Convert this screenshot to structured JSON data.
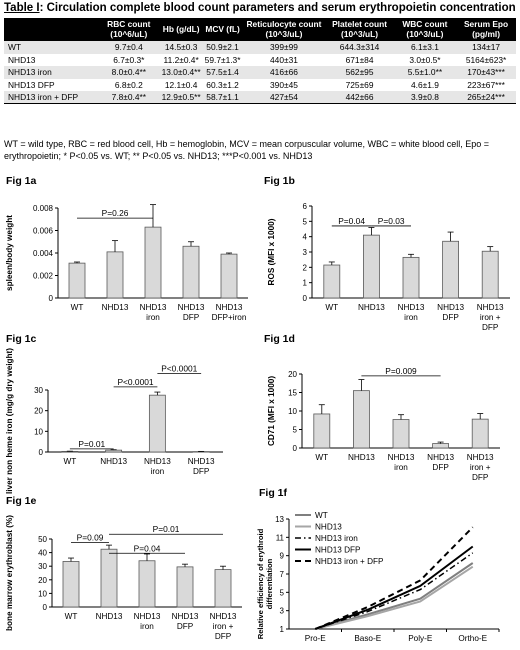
{
  "table": {
    "label": "Table I",
    "caption": ": Circulation complete blood count parameters and serum erythropoietin concentration",
    "headers": [
      "",
      "RBC count (10^6/uL)",
      "Hb (g/dL)",
      "MCV (fL)",
      "Reticulocyte count (10^3/uL)",
      "Platelet count (10^3/uL)",
      "WBC count (10^3/uL)",
      "Serum Epo (pg/ml)"
    ],
    "rows": [
      [
        "WT",
        "9.7±0.4",
        "14.5±0.3",
        "50.9±2.1",
        "399±99",
        "644.3±314",
        "6.1±3.1",
        "134±17"
      ],
      [
        "NHD13",
        "6.7±0.3*",
        "11.2±0.4*",
        "59.7±1.3*",
        "440±31",
        "671±84",
        "3.0±0.5*",
        "5164±623*"
      ],
      [
        "NHD13 iron",
        "8.0±0.4**",
        "13.0±0.4**",
        "57.5±1.4",
        "416±66",
        "562±95",
        "5.5±1.0**",
        "170±43***"
      ],
      [
        "NHD13 DFP",
        "6.8±0.2",
        "12.1±0.4",
        "60.3±1.2",
        "390±45",
        "725±69",
        "4.6±1.9",
        "223±67***"
      ],
      [
        "NHD13 iron + DFP",
        "7.8±0.4**",
        "12.9±0.5**",
        "58.7±1.1",
        "427±54",
        "442±66",
        "3.9±0.8",
        "265±24***"
      ]
    ]
  },
  "footnote": "WT = wild type, RBC = red blood cell, Hb = hemoglobin, MCV = mean corpuscular volume, WBC = white blood cell, Epo = erythropoietin; * P<0.05 vs. WT; ** P<0.05 vs. NHD13; ***P<0.001 vs. NHD13",
  "chart_data": [
    {
      "id": "fig1a",
      "type": "bar",
      "title": "Fig 1a",
      "ylabel": "spleen/body weight",
      "ylim": [
        0,
        0.008
      ],
      "yticks": [
        0,
        0.002,
        0.004,
        0.006,
        0.008
      ],
      "ytick_labels": [
        "0",
        "0.002",
        "0.004",
        "0.006",
        "0.008"
      ],
      "categories": [
        "WT",
        "NHD13",
        "NHD13 iron",
        "NHD13 DFP",
        "NHD13 DFP+iron"
      ],
      "values": [
        0.0031,
        0.0041,
        0.0063,
        0.0046,
        0.0039
      ],
      "errors": [
        0.0001,
        0.001,
        0.002,
        0.0004,
        0.0001
      ],
      "annotations": [
        {
          "text": "P=0.26",
          "from": 0,
          "to": 2,
          "y": 0.0071
        }
      ]
    },
    {
      "id": "fig1b",
      "type": "bar",
      "title": "Fig 1b",
      "ylabel": "ROS (MFI x 1000)",
      "ylim": [
        0,
        6
      ],
      "yticks": [
        0,
        1,
        2,
        3,
        4,
        5,
        6
      ],
      "ytick_labels": [
        "0",
        "1",
        "2",
        "3",
        "4",
        "5",
        "6"
      ],
      "categories": [
        "WT",
        "NHD13",
        "NHD13 iron",
        "NHD13 DFP",
        "NHD13 iron + DFP"
      ],
      "values": [
        2.15,
        4.1,
        2.65,
        3.7,
        3.05
      ],
      "errors": [
        0.2,
        0.5,
        0.2,
        0.6,
        0.3
      ],
      "annotations": [
        {
          "text": "P=0.04",
          "from": 0,
          "to": 1,
          "y": 4.7
        },
        {
          "text": "P=0.03",
          "from": 1,
          "to": 2,
          "y": 4.7
        }
      ]
    },
    {
      "id": "fig1c",
      "type": "bar",
      "title": "Fig 1c",
      "ylabel": "liver non heme iron (mg/g dry weight)",
      "ylim": [
        0,
        30
      ],
      "yticks": [
        0,
        10,
        20,
        30
      ],
      "ytick_labels": [
        "0",
        "10",
        "20",
        "30"
      ],
      "categories": [
        "WT",
        "NHD13",
        "NHD13 iron",
        "NHD13 DFP"
      ],
      "values": [
        0.3,
        0.9,
        27.5,
        0.2
      ],
      "errors": [
        0.1,
        0.2,
        1.5,
        0.1
      ],
      "annotations": [
        {
          "text": "P=0.01",
          "from": 0,
          "to": 1,
          "y": 1.5
        },
        {
          "text": "P<0.0001",
          "from": 1,
          "to": 2,
          "y": 31.5
        },
        {
          "text": "P<0.0001",
          "from": 2,
          "to": 3,
          "y": 38
        }
      ]
    },
    {
      "id": "fig1d",
      "type": "bar",
      "title": "Fig 1d",
      "ylabel": "CD71 (MFI x 1000)",
      "ylim": [
        0,
        20
      ],
      "yticks": [
        0,
        5,
        10,
        15,
        20
      ],
      "ytick_labels": [
        "0",
        "5",
        "10",
        "15",
        "20"
      ],
      "categories": [
        "WT",
        "NHD13",
        "NHD13 iron",
        "NHD13 DFP",
        "NHD13 iron + DFP"
      ],
      "values": [
        9.2,
        15.5,
        7.7,
        1.2,
        7.8
      ],
      "errors": [
        2.5,
        3.0,
        1.3,
        0.4,
        1.5
      ],
      "annotations": [
        {
          "text": "P=0.009",
          "from": 1,
          "to": 3,
          "y": 19.5
        }
      ]
    },
    {
      "id": "fig1e",
      "type": "bar",
      "title": "Fig 1e",
      "ylabel": "bone marrow erythroblast (%)",
      "ylim": [
        0,
        50
      ],
      "yticks": [
        0,
        10,
        20,
        30,
        40,
        50
      ],
      "ytick_labels": [
        "0",
        "10",
        "20",
        "30",
        "40",
        "50"
      ],
      "categories": [
        "WT",
        "NHD13",
        "NHD13 iron",
        "NHD13 DFP",
        "NHD13 iron + DFP"
      ],
      "values": [
        33.5,
        42.5,
        34,
        29.5,
        27.5
      ],
      "errors": [
        2.5,
        3.0,
        5.0,
        2.0,
        2.5
      ],
      "annotations": [
        {
          "text": "P=0.09",
          "from": 0,
          "to": 1,
          "y": 47.5
        },
        {
          "text": "P=0.04",
          "from": 1,
          "to": 3,
          "y": 39.5
        },
        {
          "text": "P=0.01",
          "from": 1,
          "to": 4,
          "y": 53.5
        }
      ]
    },
    {
      "id": "fig1f",
      "type": "line",
      "title": "Fig 1f",
      "ylabel": "Relative efficiency of erythroid differentiation",
      "ylim": [
        1,
        13
      ],
      "yticks": [
        1,
        3,
        5,
        7,
        9,
        11,
        13
      ],
      "ytick_labels": [
        "1",
        "3",
        "5",
        "7",
        "9",
        "11",
        "13"
      ],
      "categories": [
        "Pro-E",
        "Baso-E",
        "Poly-E",
        "Ortho-E"
      ],
      "series": [
        {
          "name": "WT",
          "values": [
            1,
            2.6,
            4.3,
            8.2
          ],
          "color": "#7f7f7f",
          "dash": "",
          "width": 2
        },
        {
          "name": "NHD13",
          "values": [
            1,
            2.4,
            4.0,
            7.8
          ],
          "color": "#a6a6a6",
          "dash": "",
          "width": 2
        },
        {
          "name": "NHD13 iron",
          "values": [
            1,
            2.9,
            5.3,
            9.3
          ],
          "color": "#000000",
          "dash": "6,3,1.5,3",
          "width": 1.5
        },
        {
          "name": "NHD13 DFP",
          "values": [
            1,
            3.1,
            5.7,
            10.0
          ],
          "color": "#000000",
          "dash": "",
          "width": 2
        },
        {
          "name": "NHD13 iron + DFP",
          "values": [
            1,
            3.4,
            6.3,
            12.1
          ],
          "color": "#000000",
          "dash": "6,4",
          "width": 2
        }
      ]
    }
  ]
}
